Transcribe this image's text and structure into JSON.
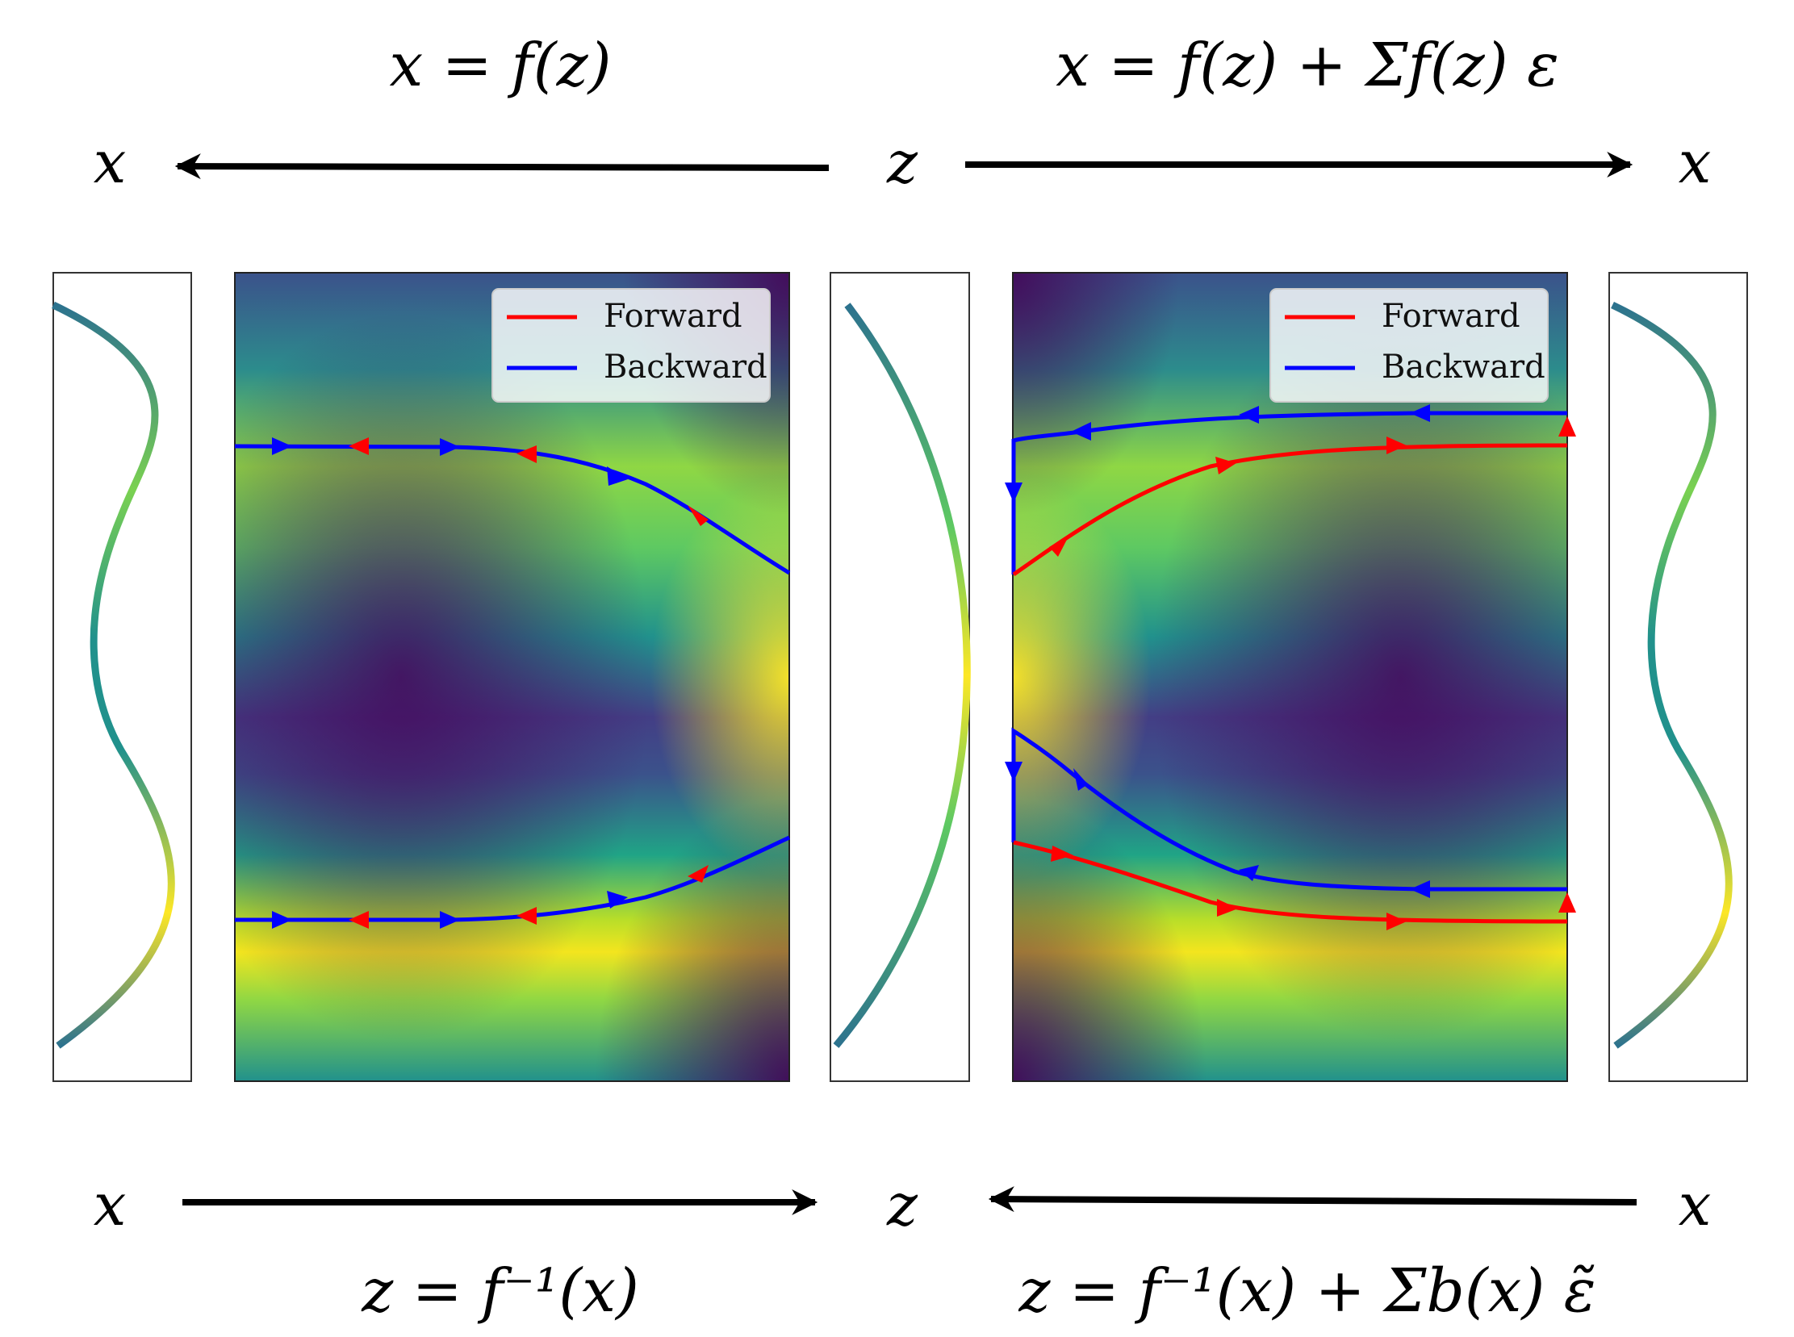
{
  "top": {
    "left_equation": "x = f(z)",
    "right_equation": "x = f(z) + Σf(z) ε",
    "left_var": "x",
    "center_var": "z",
    "right_var": "x"
  },
  "bottom": {
    "left_equation": "z = f⁻¹(x)",
    "right_equation": "z = f⁻¹(x) + Σb(x) ε̃",
    "left_var": "x",
    "center_var": "z",
    "right_var": "x"
  },
  "legend": {
    "forward_label": "Forward",
    "backward_label": "Backward"
  },
  "colors": {
    "forward": "#ff0000",
    "backward": "#0000ff",
    "viridis_dark": "#440154",
    "viridis_mid": "#21918c",
    "viridis_bright": "#fde725"
  }
}
